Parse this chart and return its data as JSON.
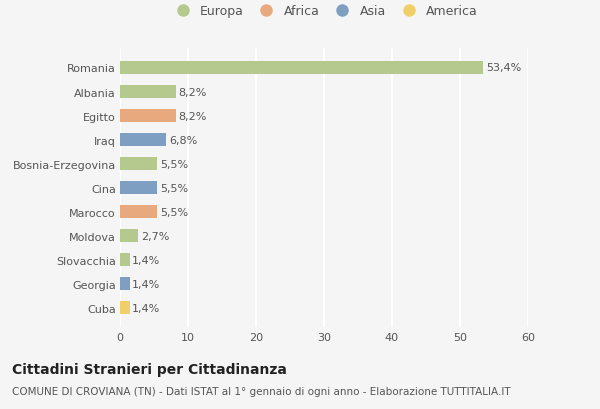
{
  "categories": [
    "Romania",
    "Albania",
    "Egitto",
    "Iraq",
    "Bosnia-Erzegovina",
    "Cina",
    "Marocco",
    "Moldova",
    "Slovacchia",
    "Georgia",
    "Cuba"
  ],
  "values": [
    53.4,
    8.2,
    8.2,
    6.8,
    5.5,
    5.5,
    5.5,
    2.7,
    1.4,
    1.4,
    1.4
  ],
  "labels": [
    "53,4%",
    "8,2%",
    "8,2%",
    "6,8%",
    "5,5%",
    "5,5%",
    "5,5%",
    "2,7%",
    "1,4%",
    "1,4%",
    "1,4%"
  ],
  "continents": [
    "Europa",
    "Europa",
    "Africa",
    "Asia",
    "Europa",
    "Asia",
    "Africa",
    "Europa",
    "Europa",
    "Asia",
    "America"
  ],
  "colors": {
    "Europa": "#b5c98e",
    "Africa": "#e8a97e",
    "Asia": "#7e9fc2",
    "America": "#f0cf6a"
  },
  "legend_order": [
    "Europa",
    "Africa",
    "Asia",
    "America"
  ],
  "xlim": [
    0,
    60
  ],
  "xticks": [
    0,
    10,
    20,
    30,
    40,
    50,
    60
  ],
  "title": "Cittadini Stranieri per Cittadinanza",
  "subtitle": "COMUNE DI CROVIANA (TN) - Dati ISTAT al 1° gennaio di ogni anno - Elaborazione TUTTITALIA.IT",
  "bg_color": "#f5f5f5",
  "bar_height": 0.55,
  "title_fontsize": 10,
  "subtitle_fontsize": 7.5,
  "label_fontsize": 8,
  "tick_fontsize": 8,
  "legend_fontsize": 9
}
